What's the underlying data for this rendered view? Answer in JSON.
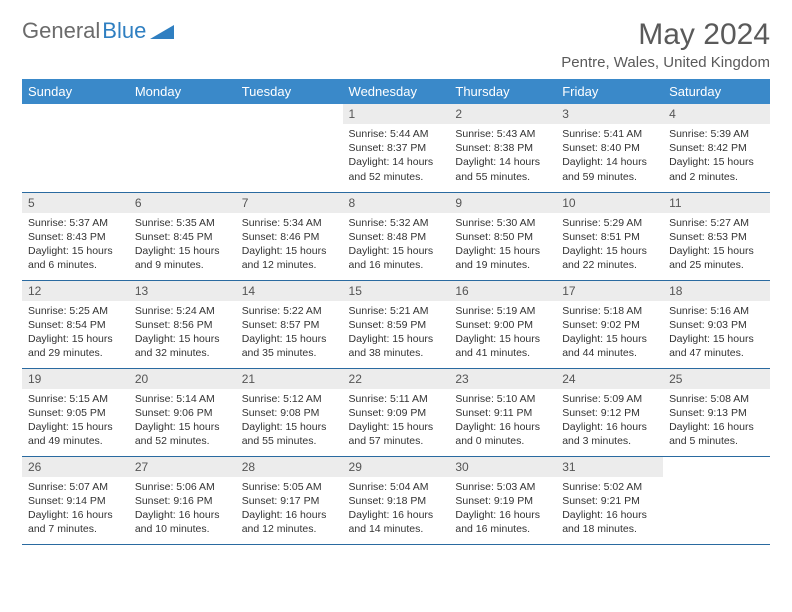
{
  "brand": {
    "part1": "General",
    "part2": "Blue"
  },
  "title": "May 2024",
  "location": "Pentre, Wales, United Kingdom",
  "day_headers": [
    "Sunday",
    "Monday",
    "Tuesday",
    "Wednesday",
    "Thursday",
    "Friday",
    "Saturday"
  ],
  "colors": {
    "header_bg": "#3a89c9",
    "header_text": "#ffffff",
    "daynum_bg": "#ececec",
    "border": "#2a6aa0"
  },
  "weeks": [
    [
      null,
      null,
      null,
      {
        "n": "1",
        "sunrise": "5:44 AM",
        "sunset": "8:37 PM",
        "daylight": "14 hours and 52 minutes."
      },
      {
        "n": "2",
        "sunrise": "5:43 AM",
        "sunset": "8:38 PM",
        "daylight": "14 hours and 55 minutes."
      },
      {
        "n": "3",
        "sunrise": "5:41 AM",
        "sunset": "8:40 PM",
        "daylight": "14 hours and 59 minutes."
      },
      {
        "n": "4",
        "sunrise": "5:39 AM",
        "sunset": "8:42 PM",
        "daylight": "15 hours and 2 minutes."
      }
    ],
    [
      {
        "n": "5",
        "sunrise": "5:37 AM",
        "sunset": "8:43 PM",
        "daylight": "15 hours and 6 minutes."
      },
      {
        "n": "6",
        "sunrise": "5:35 AM",
        "sunset": "8:45 PM",
        "daylight": "15 hours and 9 minutes."
      },
      {
        "n": "7",
        "sunrise": "5:34 AM",
        "sunset": "8:46 PM",
        "daylight": "15 hours and 12 minutes."
      },
      {
        "n": "8",
        "sunrise": "5:32 AM",
        "sunset": "8:48 PM",
        "daylight": "15 hours and 16 minutes."
      },
      {
        "n": "9",
        "sunrise": "5:30 AM",
        "sunset": "8:50 PM",
        "daylight": "15 hours and 19 minutes."
      },
      {
        "n": "10",
        "sunrise": "5:29 AM",
        "sunset": "8:51 PM",
        "daylight": "15 hours and 22 minutes."
      },
      {
        "n": "11",
        "sunrise": "5:27 AM",
        "sunset": "8:53 PM",
        "daylight": "15 hours and 25 minutes."
      }
    ],
    [
      {
        "n": "12",
        "sunrise": "5:25 AM",
        "sunset": "8:54 PM",
        "daylight": "15 hours and 29 minutes."
      },
      {
        "n": "13",
        "sunrise": "5:24 AM",
        "sunset": "8:56 PM",
        "daylight": "15 hours and 32 minutes."
      },
      {
        "n": "14",
        "sunrise": "5:22 AM",
        "sunset": "8:57 PM",
        "daylight": "15 hours and 35 minutes."
      },
      {
        "n": "15",
        "sunrise": "5:21 AM",
        "sunset": "8:59 PM",
        "daylight": "15 hours and 38 minutes."
      },
      {
        "n": "16",
        "sunrise": "5:19 AM",
        "sunset": "9:00 PM",
        "daylight": "15 hours and 41 minutes."
      },
      {
        "n": "17",
        "sunrise": "5:18 AM",
        "sunset": "9:02 PM",
        "daylight": "15 hours and 44 minutes."
      },
      {
        "n": "18",
        "sunrise": "5:16 AM",
        "sunset": "9:03 PM",
        "daylight": "15 hours and 47 minutes."
      }
    ],
    [
      {
        "n": "19",
        "sunrise": "5:15 AM",
        "sunset": "9:05 PM",
        "daylight": "15 hours and 49 minutes."
      },
      {
        "n": "20",
        "sunrise": "5:14 AM",
        "sunset": "9:06 PM",
        "daylight": "15 hours and 52 minutes."
      },
      {
        "n": "21",
        "sunrise": "5:12 AM",
        "sunset": "9:08 PM",
        "daylight": "15 hours and 55 minutes."
      },
      {
        "n": "22",
        "sunrise": "5:11 AM",
        "sunset": "9:09 PM",
        "daylight": "15 hours and 57 minutes."
      },
      {
        "n": "23",
        "sunrise": "5:10 AM",
        "sunset": "9:11 PM",
        "daylight": "16 hours and 0 minutes."
      },
      {
        "n": "24",
        "sunrise": "5:09 AM",
        "sunset": "9:12 PM",
        "daylight": "16 hours and 3 minutes."
      },
      {
        "n": "25",
        "sunrise": "5:08 AM",
        "sunset": "9:13 PM",
        "daylight": "16 hours and 5 minutes."
      }
    ],
    [
      {
        "n": "26",
        "sunrise": "5:07 AM",
        "sunset": "9:14 PM",
        "daylight": "16 hours and 7 minutes."
      },
      {
        "n": "27",
        "sunrise": "5:06 AM",
        "sunset": "9:16 PM",
        "daylight": "16 hours and 10 minutes."
      },
      {
        "n": "28",
        "sunrise": "5:05 AM",
        "sunset": "9:17 PM",
        "daylight": "16 hours and 12 minutes."
      },
      {
        "n": "29",
        "sunrise": "5:04 AM",
        "sunset": "9:18 PM",
        "daylight": "16 hours and 14 minutes."
      },
      {
        "n": "30",
        "sunrise": "5:03 AM",
        "sunset": "9:19 PM",
        "daylight": "16 hours and 16 minutes."
      },
      {
        "n": "31",
        "sunrise": "5:02 AM",
        "sunset": "9:21 PM",
        "daylight": "16 hours and 18 minutes."
      },
      null
    ]
  ],
  "labels": {
    "sunrise": "Sunrise:",
    "sunset": "Sunset:",
    "daylight": "Daylight:"
  }
}
